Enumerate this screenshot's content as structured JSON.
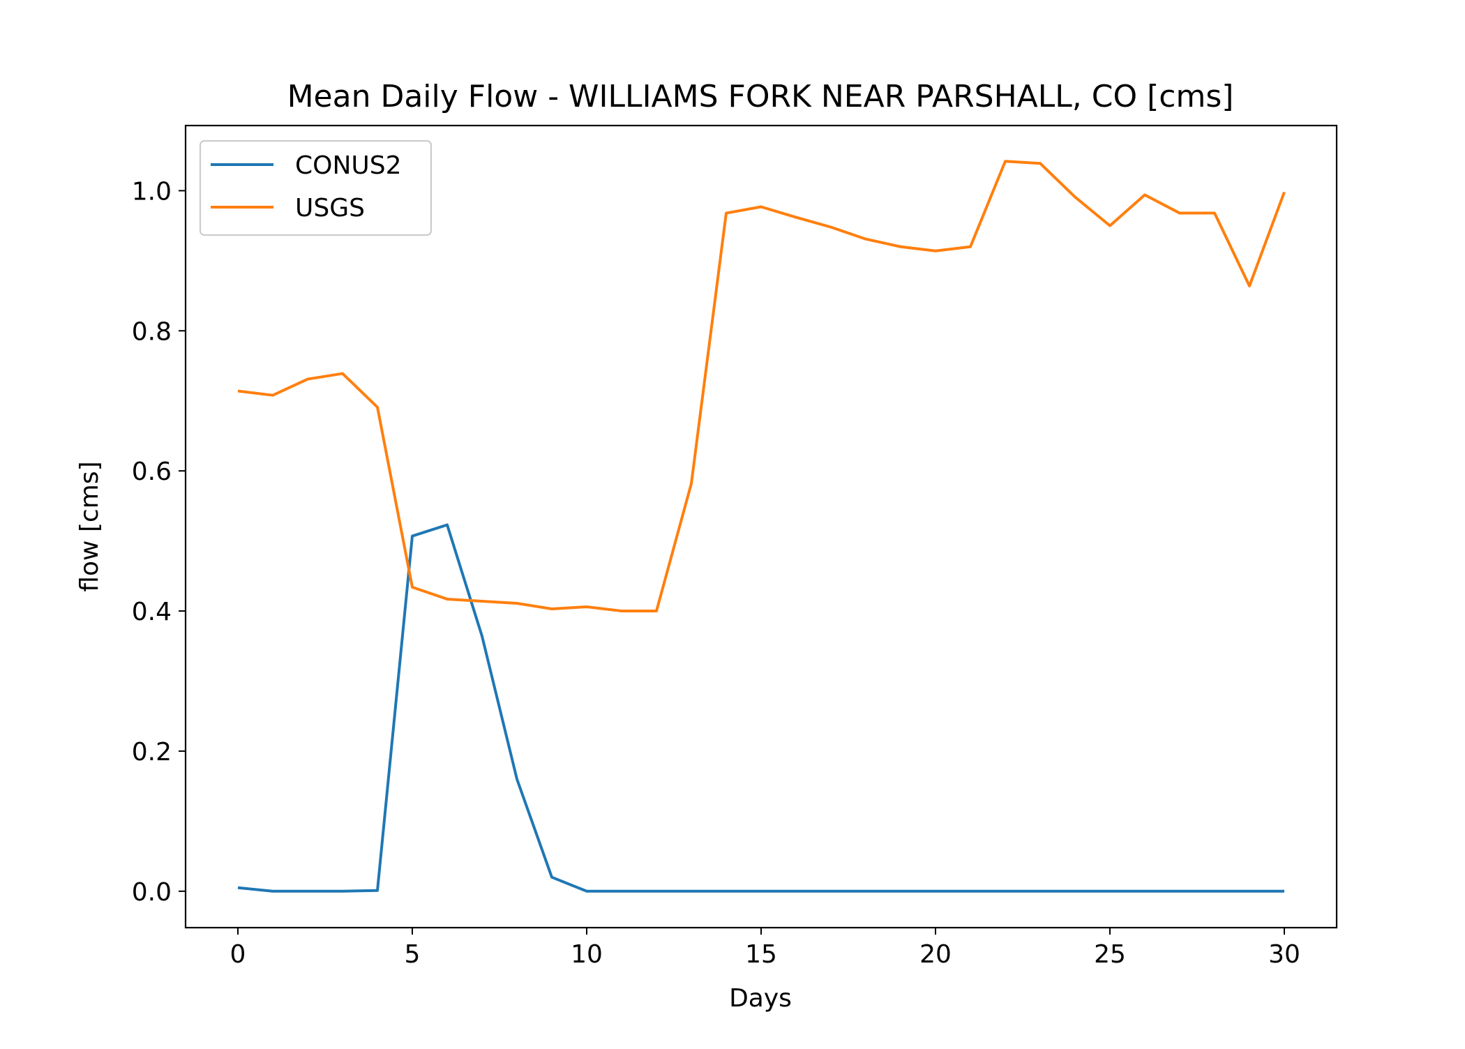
{
  "chart_data": {
    "type": "line",
    "title": "Mean Daily Flow - WILLIAMS FORK NEAR PARSHALL, CO [cms]",
    "xlabel": "Days",
    "ylabel": "flow [cms]",
    "xlim": [
      -1.5,
      31.5
    ],
    "ylim": [
      -0.052,
      1.093
    ],
    "xticks": [
      0,
      5,
      10,
      15,
      20,
      25,
      30
    ],
    "yticks": [
      0.0,
      0.2,
      0.4,
      0.6,
      0.8,
      1.0
    ],
    "xtick_labels": [
      "0",
      "5",
      "10",
      "15",
      "20",
      "25",
      "30"
    ],
    "ytick_labels": [
      "0.0",
      "0.2",
      "0.4",
      "0.6",
      "0.8",
      "1.0"
    ],
    "legend_position": "upper-left",
    "x": [
      0,
      1,
      2,
      3,
      4,
      5,
      6,
      7,
      8,
      9,
      10,
      11,
      12,
      13,
      14,
      15,
      16,
      17,
      18,
      19,
      20,
      21,
      22,
      23,
      24,
      25,
      26,
      27,
      28,
      29,
      30
    ],
    "series": [
      {
        "name": "CONUS2",
        "color": "#1f77b4",
        "values": [
          0.005,
          0.0,
          0.0,
          0.0,
          0.001,
          0.507,
          0.523,
          0.364,
          0.16,
          0.02,
          0.0,
          0.0,
          0.0,
          0.0,
          0.0,
          0.0,
          0.0,
          0.0,
          0.0,
          0.0,
          0.0,
          0.0,
          0.0,
          0.0,
          0.0,
          0.0,
          0.0,
          0.0,
          0.0,
          0.0,
          0.0
        ]
      },
      {
        "name": "USGS",
        "color": "#ff7f0e",
        "values": [
          0.714,
          0.708,
          0.731,
          0.739,
          0.691,
          0.434,
          0.417,
          0.414,
          0.411,
          0.403,
          0.406,
          0.4,
          0.4,
          0.582,
          0.968,
          0.977,
          0.962,
          0.948,
          0.931,
          0.92,
          0.914,
          0.92,
          1.042,
          1.039,
          0.991,
          0.95,
          0.994,
          0.968,
          0.968,
          0.864,
          0.998
        ]
      }
    ]
  }
}
